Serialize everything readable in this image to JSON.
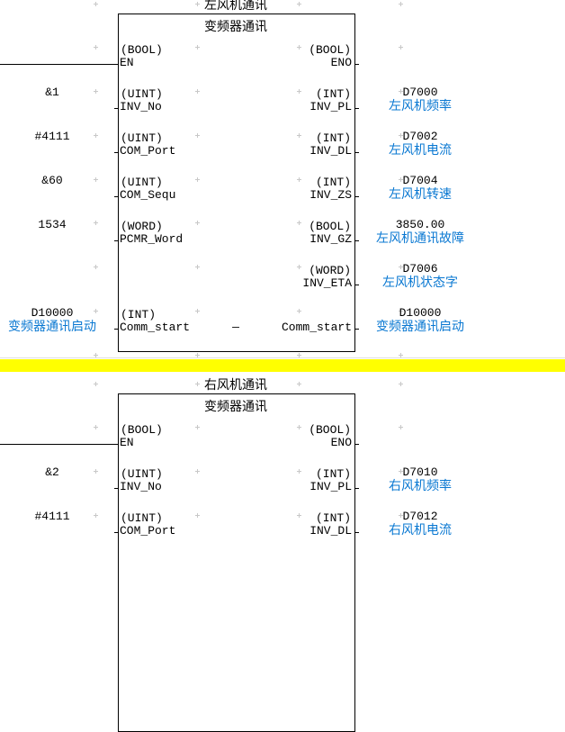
{
  "separator_color": "#ffff00",
  "comment_color": "#0a78d2",
  "blocks": [
    {
      "title": "左风机通讯",
      "header": "变频器通讯",
      "rows": [
        {
          "left": {
            "type": "(BOOL)",
            "name": "EN",
            "value": "",
            "comment": ""
          },
          "right": {
            "type": "(BOOL)",
            "name": "ENO",
            "value": "",
            "comment": ""
          }
        },
        {
          "left": {
            "type": "(UINT)",
            "name": "INV_No",
            "value": "&1",
            "comment": ""
          },
          "right": {
            "type": "(INT)",
            "name": "INV_PL",
            "value": "D7000",
            "comment": "左风机频率"
          }
        },
        {
          "left": {
            "type": "(UINT)",
            "name": "COM_Port",
            "value": "#4111",
            "comment": ""
          },
          "right": {
            "type": "(INT)",
            "name": "INV_DL",
            "value": "D7002",
            "comment": "左风机电流"
          }
        },
        {
          "left": {
            "type": "(UINT)",
            "name": "COM_Sequ",
            "value": "&60",
            "comment": ""
          },
          "right": {
            "type": "(INT)",
            "name": "INV_ZS",
            "value": "D7004",
            "comment": "左风机转速"
          }
        },
        {
          "left": {
            "type": "(WORD)",
            "name": "PCMR_Word",
            "value": "1534",
            "comment": ""
          },
          "right": {
            "type": "(BOOL)",
            "name": "INV_GZ",
            "value": "3850.00",
            "comment": "左风机通讯故障"
          }
        },
        {
          "left": null,
          "right": {
            "type": "(WORD)",
            "name": "INV_ETA",
            "value": "D7006",
            "comment": "左风机状态字"
          }
        },
        {
          "left": {
            "type": "(INT)",
            "name": "Comm_start",
            "value": "D10000",
            "comment": "变频器通讯启动"
          },
          "middle": "—",
          "right": {
            "type": "",
            "name": "Comm_start",
            "value": "D10000",
            "comment": "变频器通讯启动"
          }
        }
      ]
    },
    {
      "title": "右风机通讯",
      "header": "变频器通讯",
      "rows": [
        {
          "left": {
            "type": "(BOOL)",
            "name": "EN",
            "value": "",
            "comment": ""
          },
          "right": {
            "type": "(BOOL)",
            "name": "ENO",
            "value": "",
            "comment": ""
          }
        },
        {
          "left": {
            "type": "(UINT)",
            "name": "INV_No",
            "value": "&2",
            "comment": ""
          },
          "right": {
            "type": "(INT)",
            "name": "INV_PL",
            "value": "D7010",
            "comment": "右风机频率"
          }
        },
        {
          "left": {
            "type": "(UINT)",
            "name": "COM_Port",
            "value": "#4111",
            "comment": ""
          },
          "right": {
            "type": "(INT)",
            "name": "INV_DL",
            "value": "D7012",
            "comment": "右风机电流"
          }
        }
      ]
    }
  ]
}
